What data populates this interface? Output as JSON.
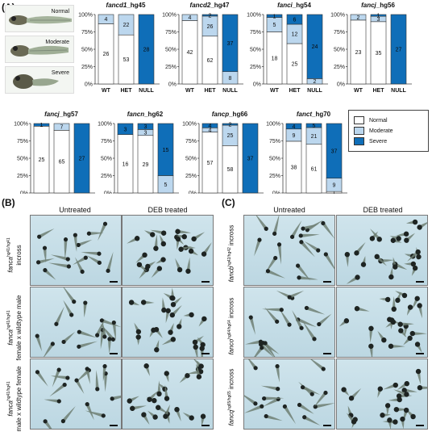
{
  "figure": {
    "panel_a": "(A)",
    "panel_b": "(B)",
    "panel_c": "(C)",
    "sample_labels": [
      "Normal",
      "Moderate",
      "Severe"
    ],
    "legend": [
      {
        "label": "Normal",
        "color": "#ffffff"
      },
      {
        "label": "Moderate",
        "color": "#bcd7ee"
      },
      {
        "label": "Severe",
        "color": "#0f6eb8"
      }
    ],
    "grid_headers": [
      "Untreated",
      "DEB treated"
    ],
    "panel_b_rows": [
      {
        "gene": "fanca",
        "allele": "hg41/hg41",
        "suffix": "incross"
      },
      {
        "gene": "fanca",
        "allele": "hg41/hg41",
        "suffix": "female x wildtype male"
      },
      {
        "gene": "fanca",
        "allele": "hg41/hg41",
        "suffix": "male x wildtype female"
      }
    ],
    "panel_c_rows": [
      {
        "gene": "fancb",
        "allele": "hg42/hg42",
        "suffix": "incross"
      },
      {
        "gene": "fanco",
        "allele": "hg64/hg64",
        "suffix": "incross"
      },
      {
        "gene": "fancq",
        "allele": "hg65/hg65",
        "suffix": "incross"
      }
    ]
  },
  "chart_data": [
    {
      "type": "bar",
      "title_gene": "fancd1",
      "title_suffix": "_hg45",
      "categories": [
        "WT",
        "HET",
        "NULL"
      ],
      "series": [
        {
          "name": "Normal",
          "values": [
            26,
            53,
            0
          ]
        },
        {
          "name": "Moderate",
          "values": [
            4,
            22,
            0
          ]
        },
        {
          "name": "Severe",
          "values": [
            0,
            0,
            28
          ]
        }
      ],
      "ylim": [
        0,
        100
      ],
      "yticks": [
        "0%",
        "25%",
        "50%",
        "75%",
        "100%"
      ]
    },
    {
      "type": "bar",
      "title_gene": "fancd2",
      "title_suffix": "_hg47",
      "categories": [
        "WT",
        "HET",
        "NULL"
      ],
      "series": [
        {
          "name": "Normal",
          "values": [
            42,
            62,
            0
          ]
        },
        {
          "name": "Moderate",
          "values": [
            4,
            26,
            8
          ]
        },
        {
          "name": "Severe",
          "values": [
            0,
            2,
            37
          ]
        }
      ],
      "ylim": [
        0,
        100
      ],
      "yticks": [
        "0%",
        "25%",
        "50%",
        "75%",
        "100%"
      ]
    },
    {
      "type": "bar",
      "title_gene": "fanci",
      "title_suffix": "_hg54",
      "categories": [
        "WT",
        "HET",
        "NULL"
      ],
      "series": [
        {
          "name": "Normal",
          "values": [
            18,
            25,
            0
          ]
        },
        {
          "name": "Moderate",
          "values": [
            5,
            12,
            2
          ]
        },
        {
          "name": "Severe",
          "values": [
            1,
            6,
            24
          ]
        }
      ],
      "ylim": [
        0,
        100
      ],
      "yticks": [
        "0%",
        "25%",
        "50%",
        "75%",
        "100%"
      ]
    },
    {
      "type": "bar",
      "title_gene": "fancj",
      "title_suffix": "_hg56",
      "categories": [
        "WT",
        "HET",
        "NULL"
      ],
      "series": [
        {
          "name": "Normal",
          "values": [
            23,
            35,
            0
          ]
        },
        {
          "name": "Moderate",
          "values": [
            2,
            3,
            0
          ]
        },
        {
          "name": "Severe",
          "values": [
            0,
            1,
            27
          ]
        }
      ],
      "ylim": [
        0,
        100
      ],
      "yticks": [
        "0%",
        "25%",
        "50%",
        "75%",
        "100%"
      ]
    },
    {
      "type": "bar",
      "title_gene": "fancj",
      "title_suffix": "_hg57",
      "categories": [
        "WT",
        "HET",
        "NULL"
      ],
      "series": [
        {
          "name": "Normal",
          "values": [
            25,
            65,
            0
          ]
        },
        {
          "name": "Moderate",
          "values": [
            0,
            7,
            0
          ]
        },
        {
          "name": "Severe",
          "values": [
            1,
            0,
            27
          ]
        }
      ],
      "ylim": [
        0,
        100
      ],
      "yticks": [
        "0%",
        "25%",
        "50%",
        "75%",
        "100%"
      ]
    },
    {
      "type": "bar",
      "title_gene": "fancn",
      "title_suffix": "_hg62",
      "categories": [
        "WT",
        "HET",
        "NULL"
      ],
      "series": [
        {
          "name": "Normal",
          "values": [
            16,
            29,
            0
          ]
        },
        {
          "name": "Moderate",
          "values": [
            0,
            3,
            5
          ]
        },
        {
          "name": "Severe",
          "values": [
            3,
            3,
            15
          ]
        }
      ],
      "ylim": [
        0,
        100
      ],
      "yticks": [
        "0%",
        "25%",
        "50%",
        "75%",
        "100%"
      ]
    },
    {
      "type": "bar",
      "title_gene": "fancp",
      "title_suffix": "_hg66",
      "categories": [
        "WT",
        "HET",
        "NULL"
      ],
      "series": [
        {
          "name": "Normal",
          "values": [
            57,
            58,
            0
          ]
        },
        {
          "name": "Moderate",
          "values": [
            4,
            25,
            0
          ]
        },
        {
          "name": "Severe",
          "values": [
            4,
            2,
            37
          ]
        }
      ],
      "ylim": [
        0,
        100
      ],
      "yticks": [
        "0%",
        "25%",
        "50%",
        "75%",
        "100%"
      ]
    },
    {
      "type": "bar",
      "title_gene": "fanct",
      "title_suffix": "_hg70",
      "categories": [
        "WT",
        "HET",
        "NULL"
      ],
      "series": [
        {
          "name": "Normal",
          "values": [
            38,
            61,
            1
          ]
        },
        {
          "name": "Moderate",
          "values": [
            9,
            21,
            9
          ]
        },
        {
          "name": "Severe",
          "values": [
            4,
            5,
            37
          ]
        }
      ],
      "ylim": [
        0,
        100
      ],
      "yticks": [
        "0%",
        "25%",
        "50%",
        "75%",
        "100%"
      ]
    }
  ]
}
